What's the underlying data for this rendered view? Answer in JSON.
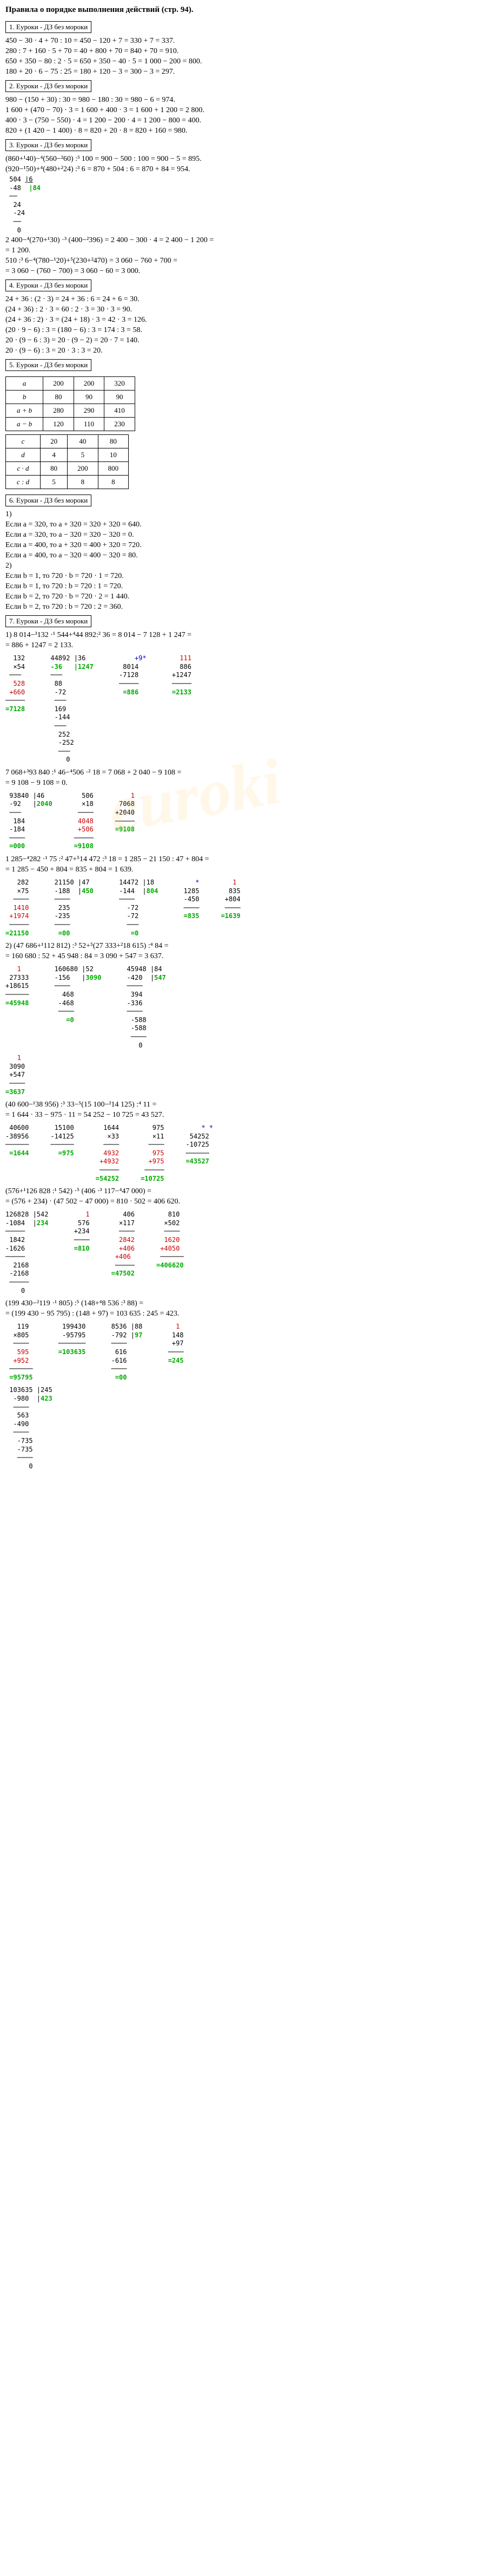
{
  "title": "Правила о порядке выполнения действий (стр. 94).",
  "sections": [
    {
      "box": "1. Еуроки - ДЗ без мороки",
      "lines": [
        "450 − 30 · 4 + 70 : 10 = 450 − 120 + 7 = 330 + 7 = 337.",
        "280 : 7 + 160 · 5 + 70 = 40 + 800 + 70 = 840 + 70 = 910.",
        "650 + 350 − 80 : 2 · 5 = 650 + 350 − 40 · 5 = 1 000 − 200 = 800.",
        "180 + 20 · 6 − 75 : 25 = 180 + 120 − 3 = 300 − 3 = 297."
      ]
    },
    {
      "box": "2. Еуроки - ДЗ без мороки",
      "lines": [
        "980 − (150 + 30) : 30 = 980 − 180 : 30 = 980 − 6 = 974.",
        "1 600 + (470 − 70) · 3 = 1 600 + 400 · 3 = 1 600 + 1 200 = 2 800.",
        "400 · 3 − (750 − 550) · 4 = 1 200 − 200 · 4 = 1 200 − 800 = 400.",
        "820 + (1 420 − 1 400) · 8 = 820 + 20 · 8 = 820 + 160 = 980."
      ]
    },
    {
      "box": "3. Еуроки - ДЗ без мороки",
      "lines": [
        "(860+¹40)−⁴(560−²60) :³ 100 = 900 − 500 : 100 = 900 − 5 = 895.",
        "(920−¹50)+⁴(480+²24) :³ 6 = 870 + 504 : 6 = 870 + 84 = 954."
      ]
    },
    {
      "box": "4. Еуроки - ДЗ без мороки",
      "lines": [
        "24 + 36 : (2 · 3) = 24 + 36 : 6 = 24 + 6 = 30.",
        "(24 + 36) : 2 · 3 = 60 : 2 · 3 = 30 · 3 = 90.",
        "(24 + 36 : 2) · 3 = (24 + 18) · 3 = 42 · 3 = 126.",
        "(20 · 9 − 6) : 3 = (180 − 6) : 3 = 174 : 3 = 58.",
        "20 · (9 − 6 : 3) = 20 · (9 − 2) = 20 · 7 = 140.",
        "20 · (9 − 6) : 3 = 20 · 3 : 3 = 20."
      ]
    },
    {
      "box": "5. Еуроки - ДЗ без мороки"
    },
    {
      "box": "6. Еуроки - ДЗ без мороки",
      "lines": [
        "1)",
        "Если a = 320, то     a + 320 = 320 + 320 = 640.",
        "Если a = 320, то     a − 320 = 320 − 320 = 0.",
        "Если a = 400, то     a + 320 = 400 + 320 = 720.",
        "Если a = 400, то     a − 320 = 400 − 320 = 80.",
        "2)",
        "Если b = 1, то        720 · b = 720 · 1 = 720.",
        "Если b = 1, то        720 : b = 720 : 1 = 720.",
        "Если b = 2, то        720 · b = 720 · 2 = 1 440.",
        "Если b = 2, то        720 : b = 720 : 2 = 360."
      ]
    },
    {
      "box": "7. Еуроки - ДЗ без мороки"
    }
  ],
  "calc504": {
    "dividend": "504",
    "divisor": "6",
    "sub1": "48",
    "quot": "84",
    "r1": "24",
    "r2": "24",
    "r3": "0"
  },
  "midlines": [
    "2 400−⁴(270+¹30) ·³ (400−²396) = 2 400 − 300 · 4 = 2 400 − 1 200 =",
    "= 1 200.",
    "510 :³ 6−⁴(780−¹20)+⁵(230+²470) = 3 060 − 760 + 700 =",
    "= 3 060 − (760 − 700) = 3 060 − 60 = 3 000."
  ],
  "table1": {
    "rows": [
      [
        "a",
        "200",
        "200",
        "320"
      ],
      [
        "b",
        "80",
        "90",
        "90"
      ],
      [
        "a + b",
        "280",
        "290",
        "410"
      ],
      [
        "a − b",
        "120",
        "110",
        "230"
      ]
    ]
  },
  "table2": {
    "rows": [
      [
        "c",
        "20",
        "40",
        "80"
      ],
      [
        "d",
        "4",
        "5",
        "10"
      ],
      [
        "c · d",
        "80",
        "200",
        "800"
      ],
      [
        "c : d",
        "5",
        "8",
        "8"
      ]
    ]
  },
  "p7": {
    "l1": "1) 8 014−³132 ·¹ 544+⁴44 892:² 36 = 8 014 − 7 128 + 1 247 =",
    "l2": "= 886 + 1247 = 2 133."
  },
  "calcs7_1": [
    {
      "t": "  132\n  ×54\n ───\n  528\n +660\n─────\n=7128",
      "cls": [
        "",
        "",
        "",
        "red",
        "red",
        "",
        "green"
      ]
    },
    {
      "t": " 44892 |36\n -36   |1247\n ───\n  88\n  -72\n  ───\n  169\n  -144\n  ───\n   252\n   -252\n   ───\n     0",
      "cls": [
        "",
        "green"
      ]
    },
    {
      "t": "     +9*\n  8014\n -7128\n ─────\n  =886",
      "cls": [
        "blue",
        "",
        "",
        "",
        "green"
      ]
    },
    {
      "t": "   111\n   886\n +1247\n ─────\n =2133",
      "cls": [
        "red",
        "",
        "",
        "",
        "green"
      ]
    }
  ],
  "p7b": {
    "l1": "7 068+³93 840 :¹ 46−⁴506 ·² 18 = 7 068 + 2 040 − 9 108 =",
    "l2": "= 9 108 − 9 108 = 0."
  },
  "calcs7_2": [
    {
      "t": " 93840 |46\n -92   |2040\n ───\n  184\n -184\n ────\n =000",
      "g": [
        1
      ]
    },
    {
      "t": "  506\n  ×18\n ────\n 4048\n +506\n─────\n=9108",
      "cls": [
        "",
        "",
        "",
        "red",
        "red",
        "",
        "green"
      ]
    },
    {
      "t": "    1\n 7068\n+2040\n─────\n=9108",
      "cls": [
        "red",
        "",
        "",
        "",
        "green"
      ]
    }
  ],
  "p7c": {
    "l1": "1 285−⁴282 ·¹ 75 :² 47+⁵14 472 :³ 18 = 1 285 − 21 150 : 47 + 804 =",
    "l2": "= 1 285 − 450 + 804 = 835 + 804 = 1 639."
  },
  "calcs7_3": [
    {
      "t": "   282\n   ×75\n  ────\n  1410\n +1974\n ─────\n=21150",
      "cls": [
        "",
        "",
        "",
        "red",
        "red",
        "",
        "green"
      ]
    },
    {
      "t": " 21150 |47\n -188  |450\n ────\n  235\n -235\n ────\n  =00",
      "g": [
        1
      ]
    },
    {
      "t": " 14472 |18\n -144  |804\n ────\n   -72\n   -72\n   ───\n    =0",
      "g": [
        1
      ]
    },
    {
      "t": "    *\n 1285\n -450\n ────\n =835",
      "cls": [
        "blue",
        "",
        "",
        "",
        "green"
      ]
    },
    {
      "t": "   1\n  835\n +804\n ────\n=1639",
      "cls": [
        "red",
        "",
        "",
        "",
        "green"
      ]
    }
  ],
  "p7d": {
    "l1": "2) (47 686+¹112 812) :³ 52+⁵(27 333+²18 615) :⁴ 84 =",
    "l2": "= 160 680 : 52 + 45 948 : 84 = 3 090 + 547 = 3 637."
  },
  "calcs7_4": [
    {
      "t": "   1\n 27333\n+18615\n──────\n=45948",
      "cls": [
        "red",
        "",
        "",
        "",
        "green"
      ]
    },
    {
      "t": " 160680 |52\n -156   |3090\n ────\n   468\n  -468\n  ────\n    =0",
      "g": [
        1
      ]
    },
    {
      "t": " 45948 |84\n -420  |547\n ────\n  394\n -336\n ────\n  -588\n  -588\n  ────\n    0",
      "g": [
        1
      ]
    }
  ],
  "calcs7_4b": [
    {
      "t": "   1\n 3090\n +547\n ────\n=3637",
      "cls": [
        "red",
        "",
        "",
        "",
        "green"
      ]
    }
  ],
  "p7e": {
    "l1": "(40 600−¹38 956) :³ 33−⁵(15 100−²14 125) :⁴ 11 =",
    "l2": "= 1 644 · 33 − 975 · 11 = 54 252 − 10 725 = 43 527."
  },
  "calcs7_5": [
    {
      "t": " 40600\n-38956\n──────\n =1644",
      "cls": [
        "",
        "",
        "",
        "green"
      ]
    },
    {
      "t": " 15100\n-14125\n──────\n  =975",
      "cls": [
        "",
        "",
        "",
        "green"
      ]
    },
    {
      "t": "  1644\n   ×33\n  ────\n  4932\n +4932\n ─────\n=54252",
      "cls": [
        "",
        "",
        "",
        "red",
        "red",
        "",
        "green"
      ]
    },
    {
      "t": "   975\n   ×11\n  ────\n   975\n  +975\n ─────\n=10725",
      "cls": [
        "",
        "",
        "",
        "red",
        "red",
        "",
        "green"
      ]
    },
    {
      "t": "    * *\n 54252\n-10725\n──────\n=43527",
      "cls": [
        "blue",
        "",
        "",
        "",
        "green"
      ]
    }
  ],
  "p7f": {
    "l1": "(576+¹126 828 :¹ 542) ·⁵ (406 ·³ 117−⁴47 000) =",
    "l2": "= (576 + 234) · (47 502 − 47 000) = 810 · 502 = 406 620."
  },
  "calcs7_6": [
    {
      "t": "126828 |542\n-1084  |234\n─────\n 1842\n-1626\n─────\n  2168\n -2168\n ─────\n    0",
      "g": [
        1
      ]
    },
    {
      "t": "    1\n  576\n +234\n ────\n =810",
      "cls": [
        "red",
        "",
        "",
        "",
        "green"
      ]
    },
    {
      "t": "   406\n  ×117\n  ────\n  2842\n  +406\n +406\n ─────\n=47502",
      "cls": [
        "",
        "",
        "",
        "red",
        "red",
        "red",
        "",
        "green"
      ]
    },
    {
      "t": "   810\n  ×502\n  ────\n  1620\n +4050\n ──────\n=406620",
      "cls": [
        "",
        "",
        "",
        "red",
        "red",
        "",
        "green"
      ]
    }
  ],
  "p7g": {
    "l1": "(199 430−²119 ·¹ 805) :⁵ (148+⁴8 536 :³ 88) =",
    "l2": "= (199 430 − 95 795) : (148 + 97) = 103 635 : 245 = 423."
  },
  "calcs7_7": [
    {
      "t": "   119\n  ×805\n  ────\n   595\n  +952\n ──────\n =95795",
      "cls": [
        "",
        "",
        "",
        "red",
        "red",
        "",
        "green"
      ]
    },
    {
      "t": "  199430\n  -95795\n ───────\n =103635",
      "cls": [
        "",
        "",
        "",
        "green"
      ]
    },
    {
      "t": " 8536 |88\n -792 |97\n ────\n  616\n -616\n ────\n  =00",
      "g": [
        1
      ]
    },
    {
      "t": "   1\n  148\n  +97\n ────\n =245",
      "cls": [
        "red",
        "",
        "",
        "",
        "green"
      ]
    }
  ],
  "calcs7_8": [
    {
      "t": " 103635 |245\n  -980  |423\n  ────\n   563\n  -490\n  ────\n   -735\n   -735\n   ────\n      0",
      "g": [
        1
      ]
    }
  ],
  "watermark": "euroki"
}
